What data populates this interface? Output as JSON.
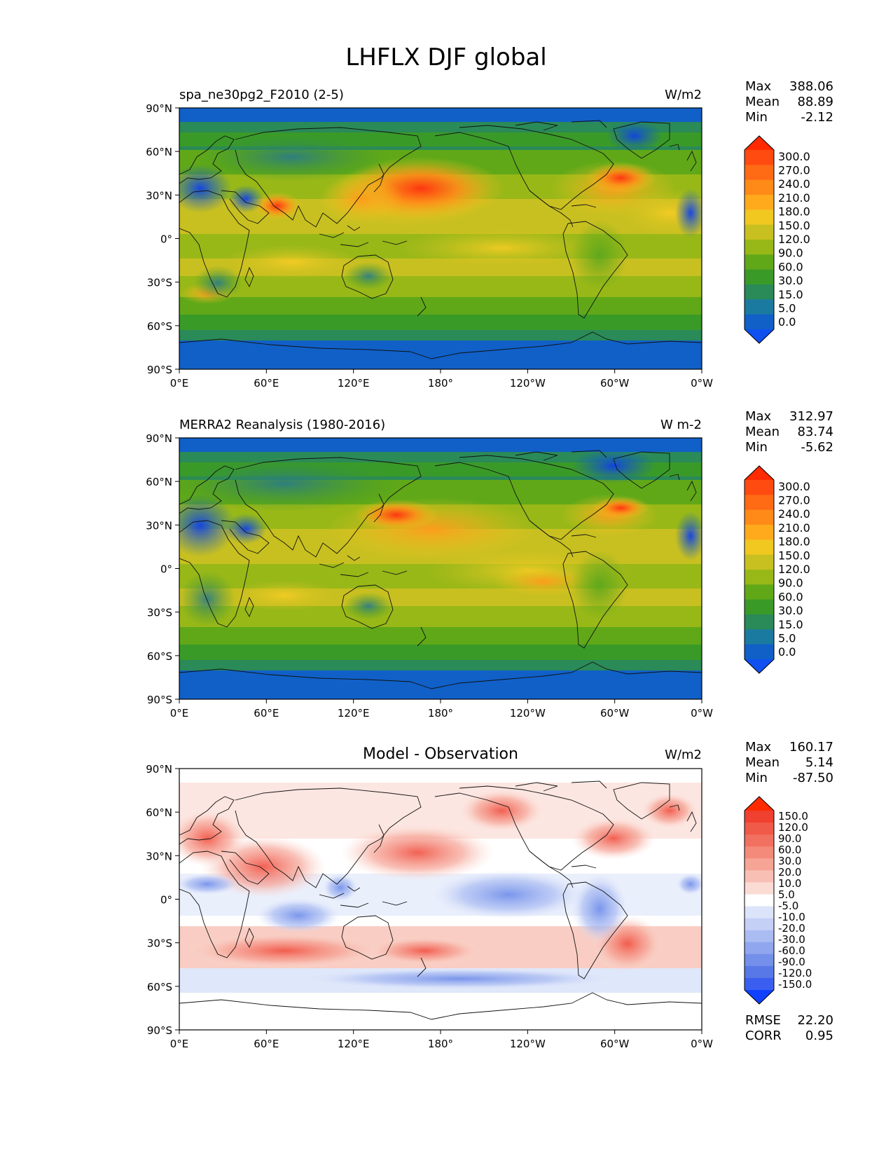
{
  "figure": {
    "title": "LHFLX DJF global"
  },
  "axes": {
    "lat_ticks": [
      "90°N",
      "60°N",
      "30°N",
      "0°",
      "30°S",
      "60°S",
      "90°S"
    ],
    "lon_ticks": [
      "0°E",
      "60°E",
      "120°E",
      "180°",
      "120°W",
      "60°W",
      "0°W"
    ]
  },
  "panels": [
    {
      "id": "test",
      "left_title": "spa_ne30pg2_F2010 (2-5)",
      "center_title": "",
      "units": "W/m2",
      "stats": [
        {
          "label": "Max",
          "value": "388.06"
        },
        {
          "label": "Mean",
          "value": "88.89"
        },
        {
          "label": "Min",
          "value": "-2.12"
        }
      ],
      "colorbar": {
        "labels": [
          "300.0",
          "270.0",
          "240.0",
          "210.0",
          "180.0",
          "150.0",
          "120.0",
          "90.0",
          "60.0",
          "30.0",
          "15.0",
          "5.0",
          "0.0"
        ],
        "colors": [
          "#ff2a00",
          "#ff4a10",
          "#ff6a14",
          "#ff8a18",
          "#ffaa1c",
          "#f0c820",
          "#c8c020",
          "#98b818",
          "#60a818",
          "#3a9a28",
          "#2a8a58",
          "#1a7aa0",
          "#1060c8",
          "#1050f0"
        ]
      }
    },
    {
      "id": "reference",
      "left_title": "MERRA2 Reanalysis (1980-2016)",
      "center_title": "",
      "units": "W m-2",
      "stats": [
        {
          "label": "Max",
          "value": "312.97"
        },
        {
          "label": "Mean",
          "value": "83.74"
        },
        {
          "label": "Min",
          "value": "-5.62"
        }
      ],
      "colorbar": {
        "labels": [
          "300.0",
          "270.0",
          "240.0",
          "210.0",
          "180.0",
          "150.0",
          "120.0",
          "90.0",
          "60.0",
          "30.0",
          "15.0",
          "5.0",
          "0.0"
        ],
        "colors": [
          "#ff2a00",
          "#ff4a10",
          "#ff6a14",
          "#ff8a18",
          "#ffaa1c",
          "#f0c820",
          "#c8c020",
          "#98b818",
          "#60a818",
          "#3a9a28",
          "#2a8a58",
          "#1a7aa0",
          "#1060c8",
          "#1050f0"
        ]
      }
    },
    {
      "id": "diff",
      "left_title": "",
      "center_title": "Model - Observation",
      "units": "W/m2",
      "stats": [
        {
          "label": "Max",
          "value": "160.17"
        },
        {
          "label": "Mean",
          "value": "5.14"
        },
        {
          "label": "Min",
          "value": "-87.50"
        }
      ],
      "colorbar": {
        "labels": [
          "150.0",
          "120.0",
          "90.0",
          "60.0",
          "30.0",
          "20.0",
          "10.0",
          "5.0",
          "-5.0",
          "-10.0",
          "-20.0",
          "-30.0",
          "-60.0",
          "-90.0",
          "-120.0",
          "-150.0"
        ],
        "colors": [
          "#ff2a00",
          "#f04030",
          "#f05a48",
          "#f27060",
          "#f48a7a",
          "#f6a496",
          "#f8c0b4",
          "#fbdcd4",
          "#ffffff",
          "#dce4fa",
          "#c4d0f6",
          "#aabcf2",
          "#90a6ee",
          "#7490ea",
          "#5878e8",
          "#3a5ff0",
          "#1040ff"
        ]
      },
      "extra_stats": [
        {
          "label": "RMSE",
          "value": "22.20"
        },
        {
          "label": "CORR",
          "value": "0.95"
        }
      ]
    }
  ]
}
